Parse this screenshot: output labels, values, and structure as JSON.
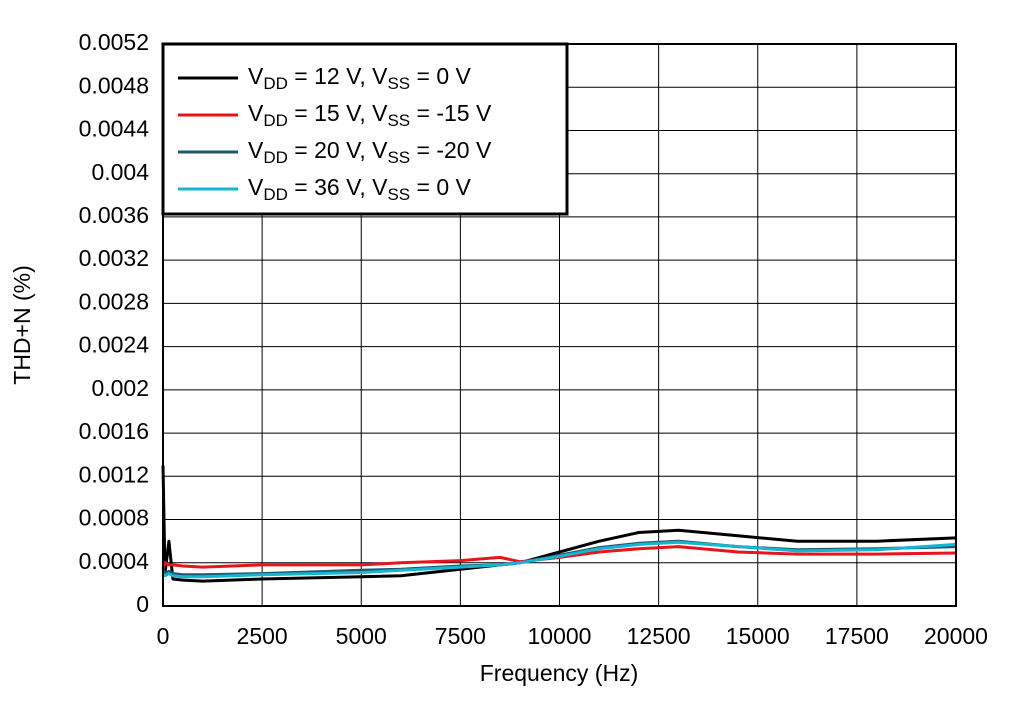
{
  "chart_data": {
    "type": "line",
    "x_label": "Frequency (Hz)",
    "y_label": "THD+N (%)",
    "x": [
      0,
      50,
      150,
      250,
      500,
      1000,
      2500,
      5000,
      6000,
      7500,
      8500,
      9000,
      10000,
      11000,
      12000,
      13000,
      14500,
      16000,
      18000,
      20000
    ],
    "series": [
      {
        "name": "VDD = 12 V, VSS = 0 V",
        "color": "#000000",
        "values": [
          0.0013,
          0.0003,
          0.0006,
          0.00025,
          0.00024,
          0.00023,
          0.00025,
          0.00027,
          0.00028,
          0.00034,
          0.00038,
          0.0004,
          0.0005,
          0.0006,
          0.00068,
          0.0007,
          0.00065,
          0.0006,
          0.0006,
          0.00063
        ]
      },
      {
        "name": "VDD = 15 V, VSS = -15 V",
        "color": "#e8141c",
        "values": [
          0.00035,
          0.0004,
          0.00038,
          0.00038,
          0.00037,
          0.00036,
          0.00038,
          0.00038,
          0.0004,
          0.00042,
          0.00045,
          0.00041,
          0.00045,
          0.0005,
          0.00053,
          0.00055,
          0.0005,
          0.00048,
          0.00048,
          0.00049
        ]
      },
      {
        "name": "VDD = 20 V, VSS = -20 V",
        "color": "#1b5a6a",
        "values": [
          0.00035,
          0.0003,
          0.00032,
          0.0003,
          0.00029,
          0.00029,
          0.0003,
          0.00033,
          0.00034,
          0.00037,
          0.00038,
          0.0004,
          0.00047,
          0.00054,
          0.00058,
          0.0006,
          0.00055,
          0.00052,
          0.00053,
          0.00055
        ]
      },
      {
        "name": "VDD = 36 V, VSS = 0 V",
        "color": "#18b4d0",
        "values": [
          0.0003,
          0.00028,
          0.0003,
          0.00028,
          0.00027,
          0.00027,
          0.00029,
          0.00031,
          0.00033,
          0.00036,
          0.00038,
          0.0004,
          0.00046,
          0.00053,
          0.00057,
          0.00059,
          0.00055,
          0.00051,
          0.00052,
          0.00057
        ]
      }
    ],
    "xlim": [
      0,
      20000
    ],
    "xticks": [
      0,
      2500,
      5000,
      7500,
      10000,
      12500,
      15000,
      17500,
      20000
    ],
    "ylim": [
      0,
      0.0052
    ],
    "yticks": [
      0,
      0.0004,
      0.0008,
      0.0012,
      0.0016,
      0.002,
      0.0024,
      0.0028,
      0.0032,
      0.0036,
      0.004,
      0.0044,
      0.0048,
      0.0052
    ],
    "grid": true,
    "legend": "upper left"
  }
}
